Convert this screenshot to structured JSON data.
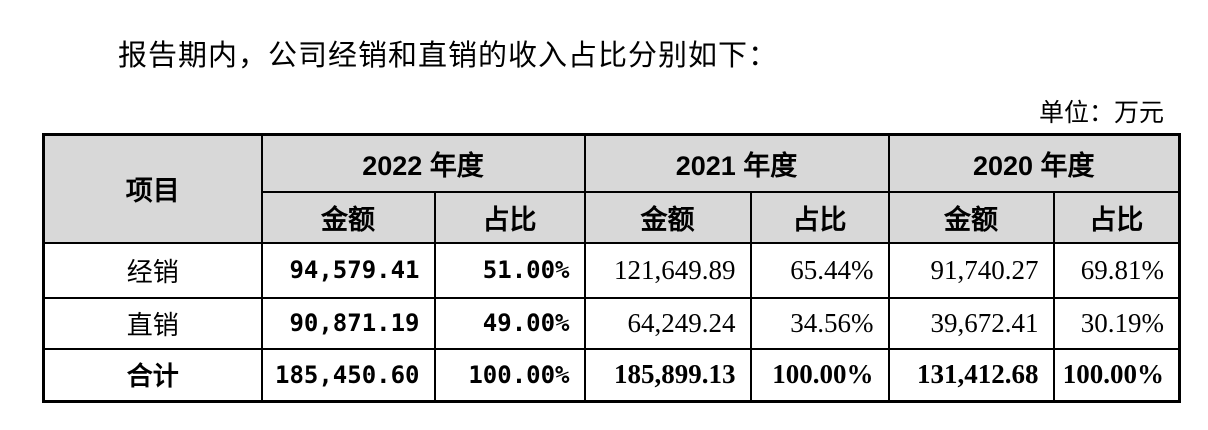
{
  "page": {
    "heading": "报告期内，公司经销和直销的收入占比分别如下：",
    "unit_label": "单位：万元"
  },
  "colors": {
    "header_bg": "#d8d8d8",
    "border": "#000000",
    "text": "#000000"
  },
  "table": {
    "corner_header": "项目",
    "year_headers": [
      "2022 年度",
      "2021 年度",
      "2020 年度"
    ],
    "sub_headers": [
      "金额",
      "占比"
    ],
    "rows": [
      {
        "label": "经销",
        "cells": [
          "94,579.41",
          "51.00%",
          "121,649.89",
          "65.44%",
          "91,740.27",
          "69.81%"
        ]
      },
      {
        "label": "直销",
        "cells": [
          "90,871.19",
          "49.00%",
          "64,249.24",
          "34.56%",
          "39,672.41",
          "30.19%"
        ]
      },
      {
        "label": "合计",
        "cells": [
          "185,450.60",
          "100.00%",
          "185,899.13",
          "100.00%",
          "131,412.68",
          "100.00%"
        ]
      }
    ]
  }
}
